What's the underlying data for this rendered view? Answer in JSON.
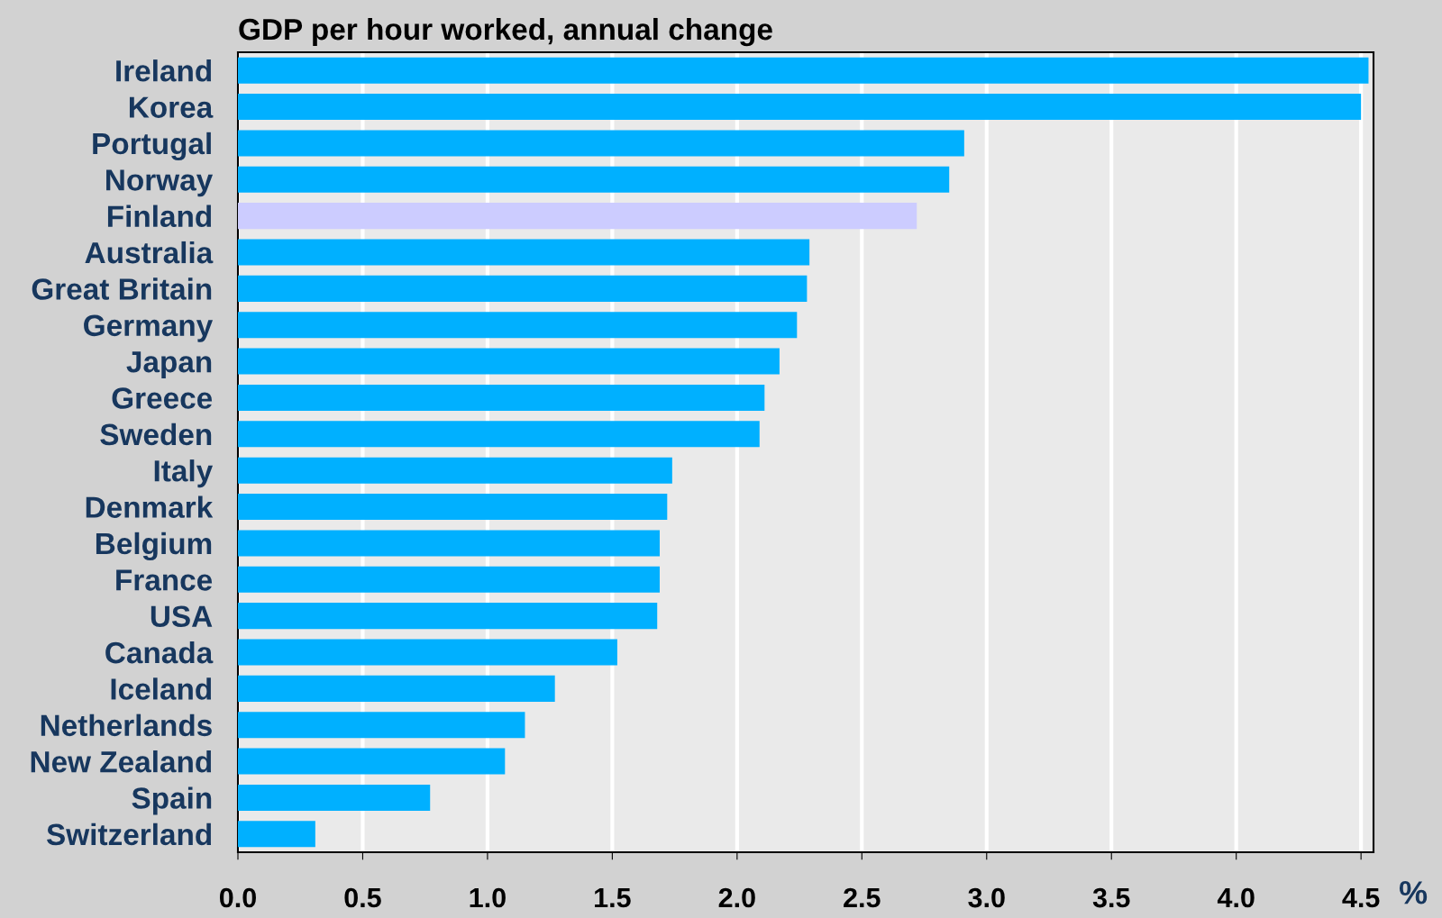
{
  "chart_data": {
    "type": "bar",
    "orientation": "horizontal",
    "title": "GDP per hour worked, annual change",
    "xlabel": "%",
    "categories": [
      "Ireland",
      "Korea",
      "Portugal",
      "Norway",
      "Finland",
      "Australia",
      "Great Britain",
      "Germany",
      "Japan",
      "Greece",
      "Sweden",
      "Italy",
      "Denmark",
      "Belgium",
      "France",
      "USA",
      "Canada",
      "Iceland",
      "Netherlands",
      "New Zealand",
      "Spain",
      "Switzerland"
    ],
    "values": [
      4.53,
      4.5,
      2.91,
      2.85,
      2.72,
      2.29,
      2.28,
      2.24,
      2.17,
      2.11,
      2.09,
      1.74,
      1.72,
      1.69,
      1.69,
      1.68,
      1.52,
      1.27,
      1.15,
      1.07,
      0.77,
      0.31
    ],
    "colors": [
      "#00b0ff",
      "#00b0ff",
      "#00b0ff",
      "#00b0ff",
      "#ccccff",
      "#00b0ff",
      "#00b0ff",
      "#00b0ff",
      "#00b0ff",
      "#00b0ff",
      "#00b0ff",
      "#00b0ff",
      "#00b0ff",
      "#00b0ff",
      "#00b0ff",
      "#00b0ff",
      "#00b0ff",
      "#00b0ff",
      "#00b0ff",
      "#00b0ff",
      "#00b0ff",
      "#00b0ff"
    ],
    "xlim": [
      0,
      4.55
    ],
    "xticks": [
      {
        "value": 0,
        "label": "0.0"
      },
      0.5,
      {
        "value": 1,
        "label": "1.0"
      },
      1.5,
      {
        "value": 2,
        "label": "2.0"
      },
      2.5,
      {
        "value": 3,
        "label": "3.0"
      },
      3.5,
      {
        "value": 4,
        "label": "4.0"
      },
      4.5
    ],
    "grid": "x"
  }
}
